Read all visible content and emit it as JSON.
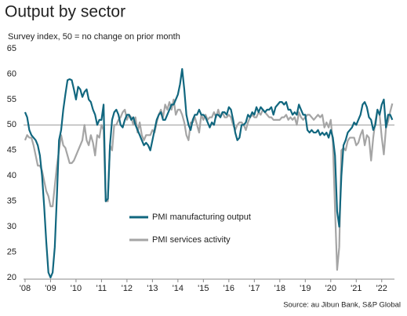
{
  "chart_data": {
    "type": "line",
    "title": "Output by sector",
    "subtitle": "Survey index, 50 = no change on prior month",
    "source": "Source: au Jibun Bank, S&P Global",
    "x": [
      2008,
      2008.083,
      2008.167,
      2008.25,
      2008.333,
      2008.417,
      2008.5,
      2008.583,
      2008.667,
      2008.75,
      2008.833,
      2008.917,
      2009,
      2009.083,
      2009.167,
      2009.25,
      2009.333,
      2009.417,
      2009.5,
      2009.583,
      2009.667,
      2009.75,
      2009.833,
      2009.917,
      2010,
      2010.083,
      2010.167,
      2010.25,
      2010.333,
      2010.417,
      2010.5,
      2010.583,
      2010.667,
      2010.75,
      2010.833,
      2010.917,
      2011,
      2011.083,
      2011.167,
      2011.25,
      2011.333,
      2011.417,
      2011.5,
      2011.583,
      2011.667,
      2011.75,
      2011.833,
      2011.917,
      2012,
      2012.083,
      2012.167,
      2012.25,
      2012.333,
      2012.417,
      2012.5,
      2012.583,
      2012.667,
      2012.75,
      2012.833,
      2012.917,
      2013,
      2013.083,
      2013.167,
      2013.25,
      2013.333,
      2013.417,
      2013.5,
      2013.583,
      2013.667,
      2013.75,
      2013.833,
      2013.917,
      2014,
      2014.083,
      2014.167,
      2014.25,
      2014.333,
      2014.417,
      2014.5,
      2014.583,
      2014.667,
      2014.75,
      2014.833,
      2014.917,
      2015,
      2015.083,
      2015.167,
      2015.25,
      2015.333,
      2015.417,
      2015.5,
      2015.583,
      2015.667,
      2015.75,
      2015.833,
      2015.917,
      2016,
      2016.083,
      2016.167,
      2016.25,
      2016.333,
      2016.417,
      2016.5,
      2016.583,
      2016.667,
      2016.75,
      2016.833,
      2016.917,
      2017,
      2017.083,
      2017.167,
      2017.25,
      2017.333,
      2017.417,
      2017.5,
      2017.583,
      2017.667,
      2017.75,
      2017.833,
      2017.917,
      2018,
      2018.083,
      2018.167,
      2018.25,
      2018.333,
      2018.417,
      2018.5,
      2018.583,
      2018.667,
      2018.75,
      2018.833,
      2018.917,
      2019,
      2019.083,
      2019.167,
      2019.25,
      2019.333,
      2019.417,
      2019.5,
      2019.583,
      2019.667,
      2019.75,
      2019.833,
      2019.917,
      2020,
      2020.083,
      2020.167,
      2020.25,
      2020.333,
      2020.417,
      2020.5,
      2020.583,
      2020.667,
      2020.75,
      2020.833,
      2020.917,
      2021,
      2021.083,
      2021.167,
      2021.25,
      2021.333,
      2021.417,
      2021.5,
      2021.583,
      2021.667,
      2021.75,
      2021.833,
      2021.917,
      2022,
      2022.083,
      2022.167,
      2022.25,
      2022.333,
      2022.417
    ],
    "series": [
      {
        "name": "PMI manufacturing output",
        "color": "#11677f",
        "values": [
          52.5,
          51.5,
          49,
          48,
          47.5,
          47,
          46,
          44,
          40,
          34,
          27,
          21,
          20,
          21,
          26,
          36,
          47,
          49,
          53,
          56,
          58.8,
          59,
          58.8,
          57,
          55,
          57.5,
          57,
          55.5,
          56.5,
          57,
          55,
          54.5,
          53,
          52,
          50,
          51,
          51,
          54,
          35,
          35.5,
          46,
          51,
          52.5,
          53,
          52,
          50,
          49.5,
          51,
          52,
          52,
          51,
          51.5,
          50,
          49,
          48,
          47,
          46,
          46.5,
          46,
          45,
          47,
          49,
          51,
          52,
          52.5,
          51,
          51,
          52,
          53,
          54,
          54,
          55,
          56,
          58,
          61,
          57,
          52,
          50,
          49,
          51,
          52,
          52,
          53,
          52,
          52,
          51.5,
          50.5,
          49.5,
          50.5,
          50,
          52,
          52,
          51.5,
          52.5,
          52.5,
          52,
          53.5,
          53,
          51,
          48.5,
          47,
          47.5,
          50,
          50,
          50.5,
          52,
          51.5,
          52.5,
          52,
          53.5,
          52.5,
          53.5,
          53,
          52.5,
          53,
          53,
          53.5,
          52,
          53.5,
          54,
          54.5,
          54.5,
          54,
          54.5,
          53,
          53,
          52,
          52.5,
          52,
          54,
          53,
          52,
          52,
          49,
          48.5,
          49,
          48.5,
          48.5,
          49,
          48,
          48.5,
          48,
          48.5,
          47.5,
          49,
          47.5,
          44,
          33,
          30,
          40,
          46,
          47,
          48.5,
          49,
          49.5,
          50.5,
          50,
          51,
          52,
          54,
          54.5,
          53.5,
          51.5,
          51,
          49,
          50,
          53,
          52,
          54,
          55,
          49.5,
          52,
          52,
          51
        ]
      },
      {
        "name": "PMI services activity",
        "color": "#a5a5a5",
        "values": [
          47,
          48,
          47.5,
          47.5,
          46,
          44,
          42,
          42,
          41,
          39,
          37,
          36,
          34,
          34,
          38,
          42,
          45,
          48,
          46,
          45.5,
          44,
          42.5,
          42.5,
          43,
          44,
          45,
          46,
          47,
          50,
          47,
          46,
          48,
          46.5,
          44,
          48,
          47.5,
          50,
          49,
          35,
          35,
          46,
          45,
          50,
          50,
          51,
          51.5,
          52.5,
          53,
          51,
          52,
          51.5,
          50,
          51.5,
          48.5,
          50.5,
          48,
          47,
          48,
          48,
          48,
          49,
          48.5,
          50.5,
          52,
          53,
          51.5,
          54,
          53,
          54.5,
          53,
          55,
          52,
          53,
          53,
          52,
          50.5,
          48,
          47,
          50.5,
          50.5,
          51.5,
          50,
          48.5,
          52,
          51,
          52,
          51,
          51.5,
          51.5,
          52.5,
          51.5,
          53,
          51.5,
          52.5,
          51.5,
          51.5,
          52,
          51.5,
          50,
          49,
          50,
          50.5,
          50.5,
          50,
          49,
          50.5,
          51.5,
          52,
          51.5,
          51.5,
          52.5,
          52,
          53,
          52.5,
          52,
          51.5,
          51.5,
          51,
          51,
          51,
          51,
          51.5,
          51.5,
          52,
          51,
          51.5,
          51,
          51.5,
          50,
          52.5,
          51.5,
          51,
          51.5,
          52,
          52,
          51.5,
          51,
          51.5,
          52,
          51.5,
          52,
          49.5,
          50.5,
          49.5,
          51,
          46.5,
          33.5,
          21.5,
          26,
          45,
          45.5,
          45,
          46.9,
          47.5,
          47.5,
          47.5,
          46,
          46.5,
          48,
          49,
          46,
          48,
          47.5,
          43,
          47.5,
          50.7,
          53,
          52,
          47.6,
          44.2,
          49.4,
          50.7,
          52.6,
          54.2
        ]
      }
    ],
    "xlim": [
      2007.94,
      2022.5
    ],
    "xticks": [
      {
        "value": 2008,
        "label": "'08"
      },
      {
        "value": 2009,
        "label": "'09"
      },
      {
        "value": 2010,
        "label": "'10"
      },
      {
        "value": 2011,
        "label": "'11"
      },
      {
        "value": 2012,
        "label": "'12"
      },
      {
        "value": 2013,
        "label": "'13"
      },
      {
        "value": 2014,
        "label": "'14"
      },
      {
        "value": 2015,
        "label": "'15"
      },
      {
        "value": 2016,
        "label": "'16"
      },
      {
        "value": 2017,
        "label": "'17"
      },
      {
        "value": 2018,
        "label": "'18"
      },
      {
        "value": 2019,
        "label": "'19"
      },
      {
        "value": 2020,
        "label": "'20"
      },
      {
        "value": 2021,
        "label": "'21"
      },
      {
        "value": 2022,
        "label": "'22"
      }
    ],
    "ylim": [
      20,
      65
    ],
    "yticks": [
      20,
      25,
      30,
      35,
      40,
      45,
      50,
      55,
      60,
      65
    ],
    "reference_line": 50,
    "grid": false,
    "legend": "lower center"
  }
}
